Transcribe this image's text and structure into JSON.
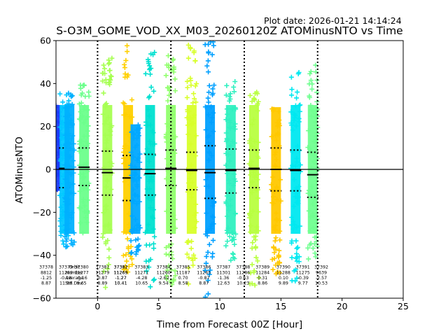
{
  "plot_date": "Plot date: 2026-01-21 14:14:24",
  "chart_data": {
    "type": "scatter",
    "title": "S-O3M_GOME_VOD_XX_M03_20260120Z ATOMinusNTO vs Time",
    "xlabel": "Time from Forecast 00Z [Hour]",
    "ylabel": "ATOMinusNTO",
    "xlim": [
      -3.4,
      25
    ],
    "ylim": [
      -60,
      60
    ],
    "xticks": [
      0,
      5,
      10,
      15,
      20,
      25
    ],
    "yticks": [
      -60,
      -40,
      -20,
      0,
      20,
      40,
      60
    ],
    "zero_line": 0,
    "forecast_lines_x": [
      0,
      6,
      12,
      18
    ],
    "orbits": [
      {
        "x": -3.4,
        "low": -10,
        "high": 30,
        "color": "#1a3cff"
      },
      {
        "x": -2.7,
        "low": -38,
        "high": 37,
        "color": "#00c8ff",
        "median": 0.5,
        "p_hi": 10,
        "p_lo": -8.5
      },
      {
        "x": -2.3,
        "low": -37,
        "high": 36,
        "color": "#00b0ff"
      },
      {
        "x": -1.1,
        "low": -30,
        "high": 42,
        "color": "#6cff8c",
        "median": 1,
        "p_hi": 10,
        "p_lo": -7.5
      },
      {
        "x": 0.8,
        "low": -56,
        "high": 53,
        "color": "#a6ff52",
        "median": -1.5,
        "p_hi": 8.5,
        "p_lo": -12
      },
      {
        "x": 2.5,
        "low": -48,
        "high": 60,
        "color": "#ffd000",
        "median": -4,
        "p_hi": 6.5,
        "p_lo": -14.5
      },
      {
        "x": 3.1,
        "low": -40,
        "high": 21,
        "color": "#00a8ff"
      },
      {
        "x": 4.3,
        "low": -55,
        "high": 58,
        "color": "#00e0d0",
        "median": -2,
        "p_hi": 7,
        "p_lo": -12
      },
      {
        "x": 6.0,
        "low": -56,
        "high": 57,
        "color": "#90ff6c",
        "median": 0.5,
        "p_hi": 9,
        "p_lo": -7.5
      },
      {
        "x": 7.7,
        "low": -55,
        "high": 58,
        "color": "#d8ff2a",
        "median": -0.5,
        "p_hi": 8,
        "p_lo": -9.5
      },
      {
        "x": 9.2,
        "low": -60,
        "high": 60,
        "color": "#00a0ff",
        "median": -1.5,
        "p_hi": 11,
        "p_lo": -13.5
      },
      {
        "x": 10.9,
        "low": -45,
        "high": 44,
        "color": "#30f0c0",
        "median": -0.5,
        "p_hi": 9.5,
        "p_lo": -11
      },
      {
        "x": 12.8,
        "low": -55,
        "high": 38,
        "color": "#b8ff40",
        "median": 0.5,
        "p_hi": 9,
        "p_lo": -8.5
      },
      {
        "x": 14.6,
        "low": -50,
        "high": 29,
        "color": "#ffc800",
        "median": 0,
        "p_hi": 10,
        "p_lo": -10
      },
      {
        "x": 16.2,
        "low": -52,
        "high": 47,
        "color": "#00e8f0",
        "median": -0.5,
        "p_hi": 9,
        "p_lo": -10
      },
      {
        "x": 17.6,
        "low": -42,
        "high": 50,
        "color": "#70ff90",
        "median": -2.5,
        "p_hi": 8,
        "p_lo": -13
      }
    ],
    "annotations": [
      {
        "x": -4.2,
        "lines": [
          "37378",
          "8812",
          "-1.25",
          "8.87"
        ]
      },
      {
        "x": -2.6,
        "lines": [
          "37379",
          "11299",
          "-0.18",
          "11.98"
        ]
      },
      {
        "x": -1.9,
        "lines": [
          "Orbit",
          "Number",
          "Average",
          "Std.Dev."
        ]
      },
      {
        "x": -1.3,
        "lines": [
          "37380",
          "11277",
          "-0.16",
          "9.65"
        ]
      },
      {
        "x": 0.4,
        "lines": [
          "37381",
          "11279",
          "0.87",
          "8.89"
        ]
      },
      {
        "x": 1.9,
        "lines": [
          "37382",
          "11269",
          "-1.27",
          "10.41"
        ]
      },
      {
        "x": 1.9,
        "lines": [
          "37382",
          "11269",
          "-1.27",
          "10.41"
        ]
      },
      {
        "x": 3.6,
        "lines": [
          "37383",
          "11271",
          "-4.28",
          "10.65"
        ]
      },
      {
        "x": 5.4,
        "lines": [
          "37384",
          "11260",
          "-2.62",
          "9.54"
        ]
      },
      {
        "x": 7.0,
        "lines": [
          "37385",
          "11187",
          "0.70",
          "8.58"
        ]
      },
      {
        "x": 8.7,
        "lines": [
          "37386",
          "11265",
          "-0.87",
          "8.87"
        ]
      },
      {
        "x": 10.3,
        "lines": [
          "37387",
          "11301",
          "-1.36",
          "12.63"
        ]
      },
      {
        "x": 11.9,
        "lines": [
          "37388",
          "11286",
          "-0.63",
          "10.23"
        ]
      },
      {
        "x": 13.5,
        "lines": [
          "37389",
          "11284",
          "0.31",
          "8.86"
        ]
      },
      {
        "x": 15.2,
        "lines": [
          "37390",
          "11288",
          "0.10",
          "9.89"
        ]
      },
      {
        "x": 16.8,
        "lines": [
          "37391",
          "11275",
          "-0.39",
          "9.77"
        ]
      },
      {
        "x": 18.3,
        "lines": [
          "37392",
          "9639",
          "-2.57",
          "10.53"
        ]
      }
    ]
  }
}
